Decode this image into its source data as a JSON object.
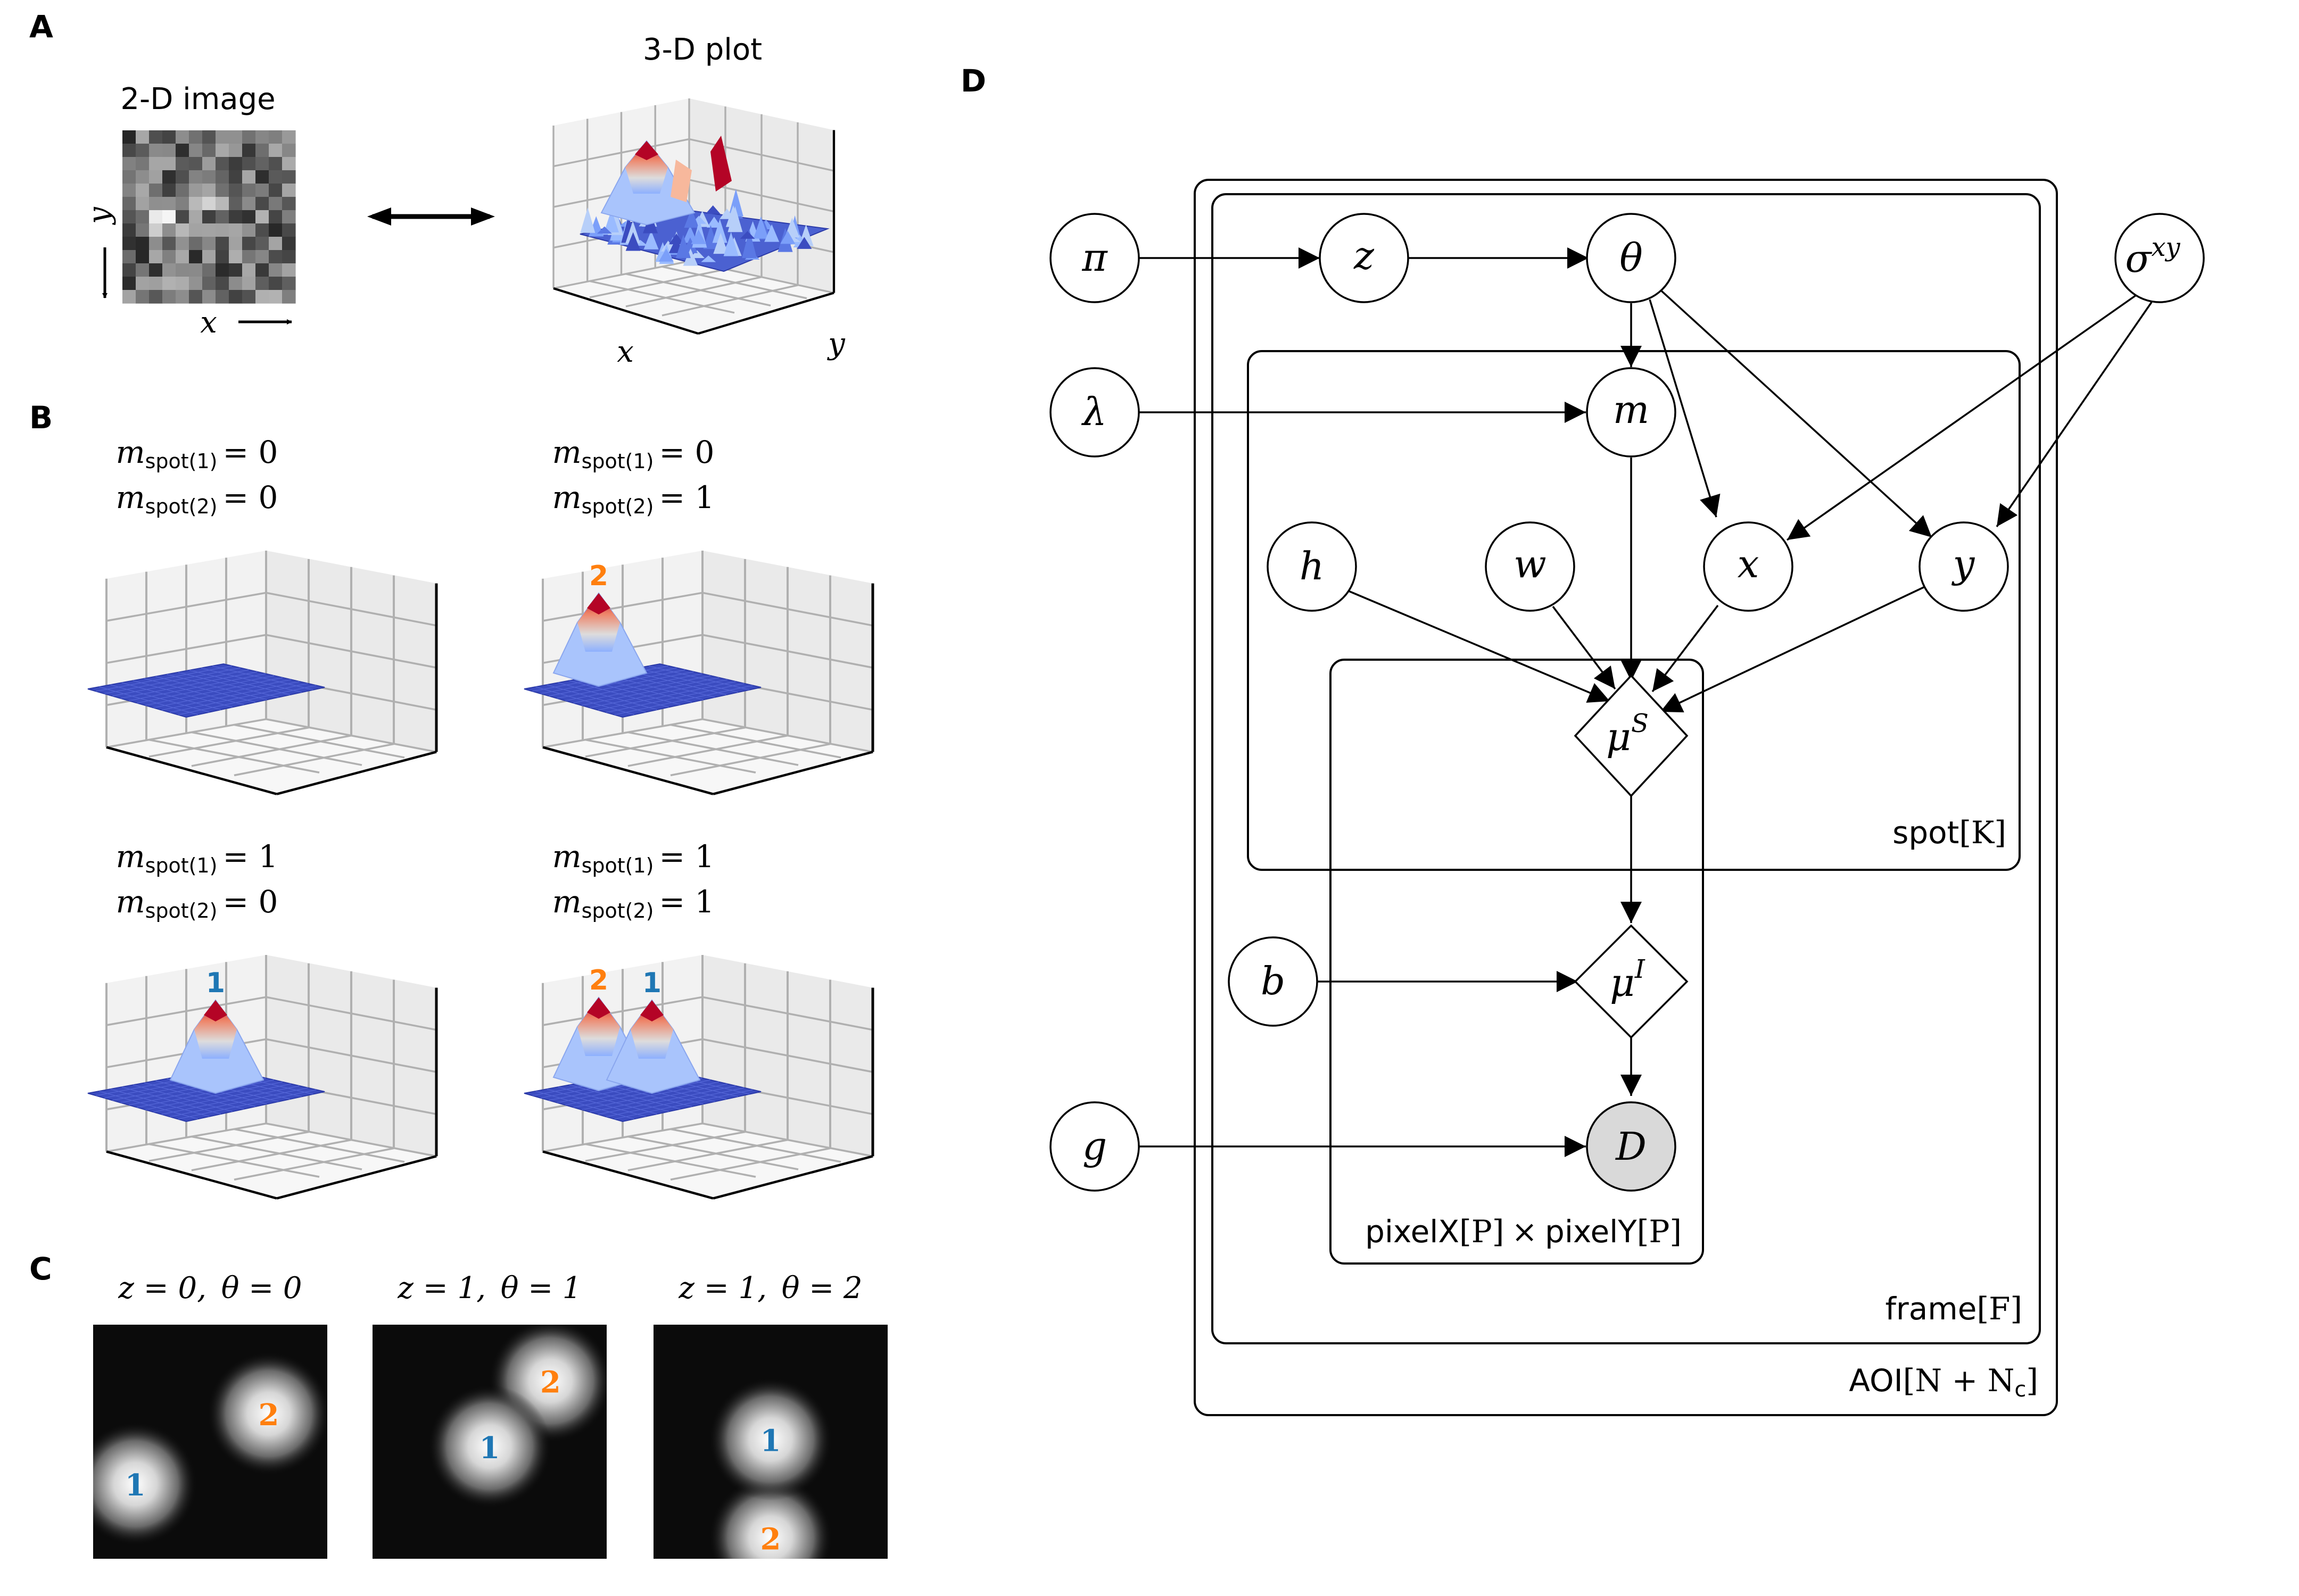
{
  "panels": {
    "A": {
      "label": "A",
      "image_title": "2-D image",
      "plot_title": "3-D plot",
      "x_label": "x",
      "y_label": "y"
    },
    "B": {
      "label": "B",
      "spot_sub": "spot",
      "cases": [
        {
          "m1_sub": "(1)",
          "m1_val": "= 0",
          "m2_sub": "(2)",
          "m2_val": "= 0",
          "peaks": []
        },
        {
          "m1_sub": "(1)",
          "m1_val": "= 0",
          "m2_sub": "(2)",
          "m2_val": "= 1",
          "peaks": [
            "2"
          ]
        },
        {
          "m1_sub": "(1)",
          "m1_val": "= 1",
          "m2_sub": "(2)",
          "m2_val": "= 0",
          "peaks": [
            "1"
          ]
        },
        {
          "m1_sub": "(1)",
          "m1_val": "= 1",
          "m2_sub": "(2)",
          "m2_val": "= 1",
          "peaks": [
            "2",
            "1"
          ]
        }
      ]
    },
    "C": {
      "label": "C",
      "images": [
        {
          "title_z": "z = 0,",
          "title_theta": "θ = 0",
          "spot1": "1",
          "spot2": "2"
        },
        {
          "title_z": "z = 1,",
          "title_theta": "θ = 1",
          "spot1": "1",
          "spot2": "2"
        },
        {
          "title_z": "z = 1,",
          "title_theta": "θ = 2",
          "spot1": "1",
          "spot2": "2"
        }
      ]
    },
    "D": {
      "label": "D",
      "nodes": {
        "pi": "π",
        "z": "z",
        "theta": "θ",
        "sigma": "σ",
        "sigma_sup": "xy",
        "lambda": "λ",
        "m": "m",
        "h": "h",
        "w": "w",
        "x": "x",
        "y": "y",
        "muS": "μ",
        "muS_sup": "S",
        "b": "b",
        "muI": "μ",
        "muI_sup": "I",
        "g": "g",
        "D": "D"
      },
      "plates": {
        "spot_name": "spot",
        "spot_idx": "[K]",
        "pixel_name_x": "pixelX",
        "pixel_idx_x": "[P]",
        "pixel_times": "×",
        "pixel_name_y": "pixelY",
        "pixel_idx_y": "[P]",
        "frame_name": "frame",
        "frame_idx": "[F]",
        "aoi_name": "AOI",
        "aoi_idx": "[N + N",
        "aoi_sub": "c",
        "aoi_close": "]"
      }
    }
  },
  "colors": {
    "spot1": "#1f77b4",
    "spot2": "#ff7f0e",
    "surface_low": "#3b4cc0",
    "surface_high": "#b40426",
    "observed_node_fill": "#d9d9d9"
  }
}
